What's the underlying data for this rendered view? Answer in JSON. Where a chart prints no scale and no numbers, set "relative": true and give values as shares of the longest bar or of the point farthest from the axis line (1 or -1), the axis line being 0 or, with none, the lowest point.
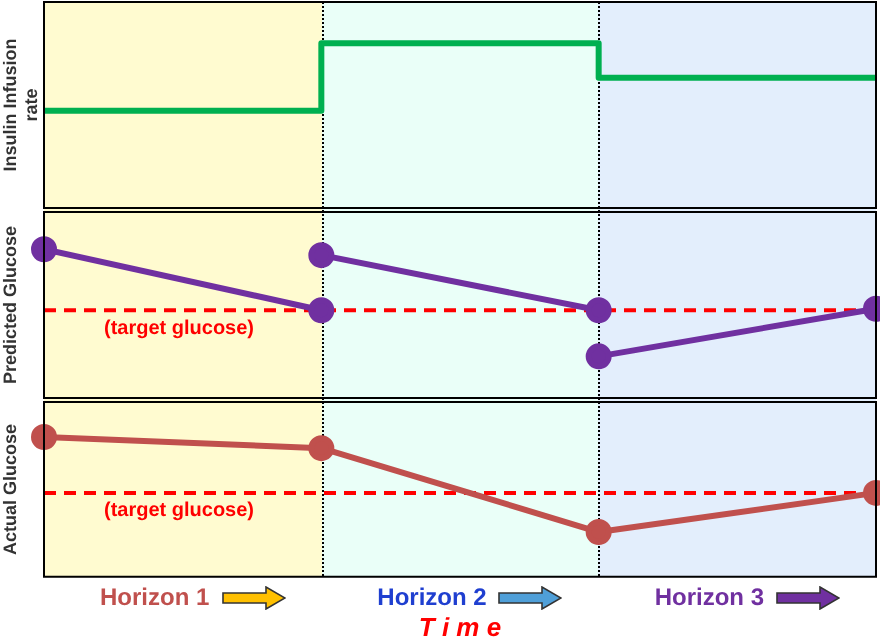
{
  "chart_data": [
    {
      "type": "step",
      "ylabel": "Insulin Infusion rate",
      "relative": true,
      "categories": [
        null,
        null,
        null,
        null
      ],
      "marker": "none",
      "series": [
        {
          "color": "#00b050",
          "values": [
            0.59,
            1,
            0.79,
            0.79
          ]
        }
      ]
    },
    {
      "type": "line",
      "ylabel": "Predicted Glucose",
      "relative": true,
      "categories": [
        null,
        null,
        null,
        null
      ],
      "marker": "circle",
      "series": [
        {
          "color": "#7030a0",
          "values": [
            1,
            0.59,
            null,
            null
          ]
        },
        {
          "color": "#7030a0",
          "values": [
            null,
            0.96,
            0.59,
            null
          ]
        },
        {
          "color": "#7030a0",
          "values": [
            null,
            null,
            0.28,
            0.6
          ]
        }
      ],
      "ref_lines": [
        {
          "axis": "y",
          "value": 0.59,
          "label": "(target glucose)",
          "color": "#ff0000",
          "line_style": "dashed"
        }
      ]
    },
    {
      "type": "line",
      "ylabel": "Actual Glucose",
      "xlabel": "T i m e",
      "relative": true,
      "categories": [
        null,
        null,
        null,
        null
      ],
      "marker": "circle",
      "series": [
        {
          "color": "#c0504d",
          "values": [
            1,
            0.92,
            0.32,
            0.6
          ]
        }
      ],
      "ref_lines": [
        {
          "axis": "y",
          "value": 0.6,
          "label": "(target glucose)",
          "color": "#ff0000",
          "line_style": "dashed"
        }
      ],
      "annotations": [
        "Horizon 1",
        "Horizon 2",
        "Horizon 3"
      ]
    }
  ]
}
